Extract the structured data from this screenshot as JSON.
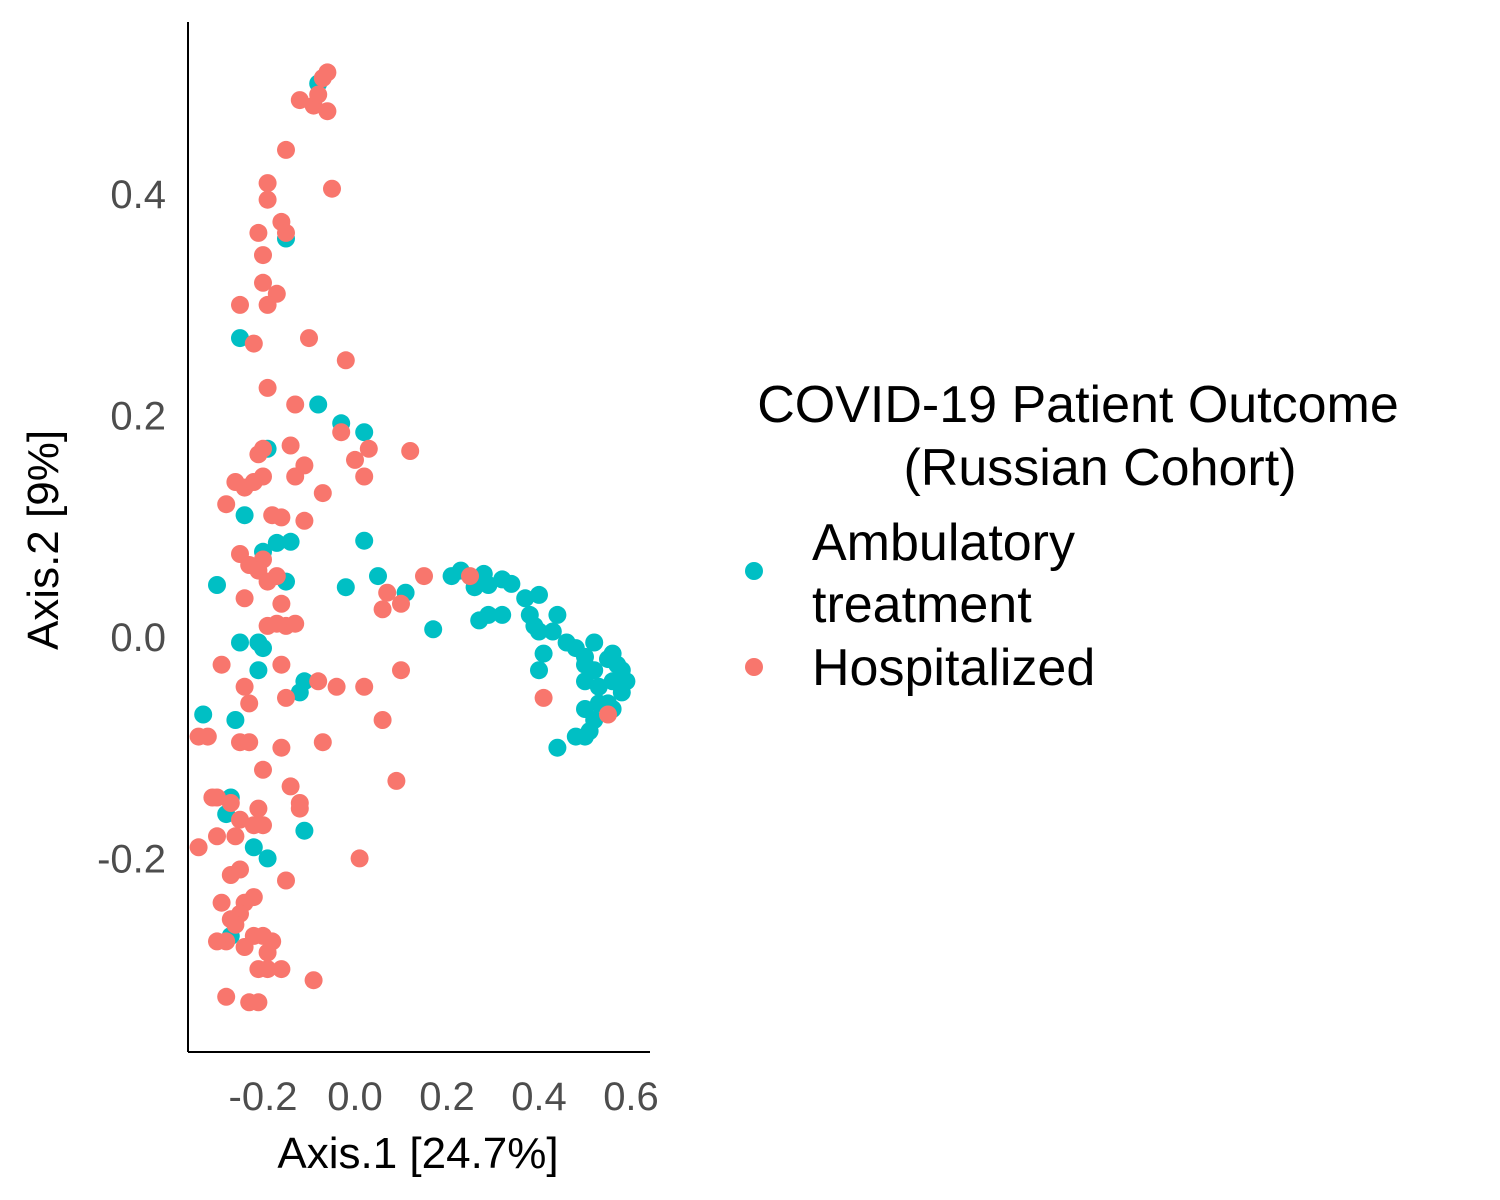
{
  "chart_data": {
    "type": "scatter",
    "title": "",
    "xlabel": "Axis.1   [24.7%]",
    "ylabel": "Axis.2   [9%]",
    "xlim": [
      -0.36,
      0.65
    ],
    "ylim": [
      -0.37,
      0.55
    ],
    "x_ticks": [
      "-0.2",
      "0.0",
      "0.2",
      "0.4",
      "0.6"
    ],
    "y_ticks": [
      "-0.2",
      "0.0",
      "0.2",
      "0.4"
    ],
    "grid": false,
    "legend": {
      "title_lines": [
        "COVID-19 Patient Outcome",
        "(Russian Cohort)"
      ],
      "placement": "right",
      "entries": [
        {
          "label_lines": [
            "Ambulatory",
            "treatment"
          ],
          "color": "#00BFC4"
        },
        {
          "label_lines": [
            "Hospitalized"
          ],
          "color": "#F8766D"
        }
      ]
    },
    "series": [
      {
        "name": "Ambulatory treatment",
        "color": "#00BFC4",
        "points": [
          [
            -0.08,
            0.5
          ],
          [
            -0.15,
            0.36
          ],
          [
            -0.25,
            0.27
          ],
          [
            -0.08,
            0.21
          ],
          [
            -0.03,
            0.193
          ],
          [
            0.02,
            0.185
          ],
          [
            -0.19,
            0.17
          ],
          [
            0.02,
            0.087
          ],
          [
            -0.24,
            0.11
          ],
          [
            -0.17,
            0.085
          ],
          [
            -0.14,
            0.086
          ],
          [
            -0.2,
            0.077
          ],
          [
            -0.3,
            0.047
          ],
          [
            -0.15,
            0.05
          ],
          [
            -0.02,
            0.045
          ],
          [
            0.05,
            0.055
          ],
          [
            0.11,
            0.04
          ],
          [
            0.17,
            0.007
          ],
          [
            0.21,
            0.055
          ],
          [
            0.23,
            0.06
          ],
          [
            0.26,
            0.045
          ],
          [
            0.28,
            0.057
          ],
          [
            0.29,
            0.047
          ],
          [
            0.32,
            0.052
          ],
          [
            0.34,
            0.048
          ],
          [
            0.37,
            0.035
          ],
          [
            0.4,
            0.038
          ],
          [
            0.27,
            0.015
          ],
          [
            0.29,
            0.02
          ],
          [
            0.32,
            0.02
          ],
          [
            0.38,
            0.02
          ],
          [
            0.44,
            0.02
          ],
          [
            0.39,
            0.01
          ],
          [
            0.4,
            0.005
          ],
          [
            0.43,
            0.005
          ],
          [
            0.46,
            -0.005
          ],
          [
            0.48,
            -0.01
          ],
          [
            0.5,
            -0.018
          ],
          [
            0.52,
            -0.005
          ],
          [
            0.55,
            -0.02
          ],
          [
            0.56,
            -0.015
          ],
          [
            0.5,
            -0.025
          ],
          [
            0.52,
            -0.03
          ],
          [
            0.57,
            -0.025
          ],
          [
            0.58,
            -0.03
          ],
          [
            0.56,
            -0.04
          ],
          [
            0.59,
            -0.04
          ],
          [
            0.58,
            -0.05
          ],
          [
            0.53,
            -0.045
          ],
          [
            0.55,
            -0.06
          ],
          [
            0.56,
            -0.065
          ],
          [
            0.53,
            -0.06
          ],
          [
            0.5,
            -0.065
          ],
          [
            0.52,
            -0.075
          ],
          [
            0.51,
            -0.085
          ],
          [
            0.5,
            -0.09
          ],
          [
            0.48,
            -0.09
          ],
          [
            0.44,
            -0.1
          ],
          [
            0.41,
            -0.015
          ],
          [
            0.4,
            -0.03
          ],
          [
            0.5,
            -0.04
          ],
          [
            -0.25,
            -0.005
          ],
          [
            -0.21,
            -0.005
          ],
          [
            -0.2,
            -0.01
          ],
          [
            -0.21,
            -0.03
          ],
          [
            -0.11,
            -0.04
          ],
          [
            -0.12,
            -0.05
          ],
          [
            -0.33,
            -0.07
          ],
          [
            -0.26,
            -0.075
          ],
          [
            -0.27,
            -0.145
          ],
          [
            -0.28,
            -0.16
          ],
          [
            -0.22,
            -0.19
          ],
          [
            -0.19,
            -0.2
          ],
          [
            -0.11,
            -0.175
          ],
          [
            -0.27,
            -0.27
          ]
        ]
      },
      {
        "name": "Hospitalized",
        "color": "#F8766D",
        "points": [
          [
            -0.06,
            0.51
          ],
          [
            -0.07,
            0.505
          ],
          [
            -0.09,
            0.48
          ],
          [
            -0.08,
            0.49
          ],
          [
            -0.12,
            0.485
          ],
          [
            -0.06,
            0.475
          ],
          [
            -0.15,
            0.44
          ],
          [
            -0.05,
            0.405
          ],
          [
            -0.19,
            0.41
          ],
          [
            -0.19,
            0.395
          ],
          [
            -0.16,
            0.375
          ],
          [
            -0.15,
            0.365
          ],
          [
            -0.21,
            0.365
          ],
          [
            -0.2,
            0.345
          ],
          [
            -0.2,
            0.32
          ],
          [
            -0.17,
            0.31
          ],
          [
            -0.19,
            0.3
          ],
          [
            -0.25,
            0.3
          ],
          [
            -0.1,
            0.27
          ],
          [
            -0.22,
            0.265
          ],
          [
            -0.02,
            0.25
          ],
          [
            -0.19,
            0.225
          ],
          [
            -0.13,
            0.21
          ],
          [
            -0.03,
            0.185
          ],
          [
            -0.2,
            0.17
          ],
          [
            -0.14,
            0.173
          ],
          [
            -0.21,
            0.165
          ],
          [
            -0.11,
            0.155
          ],
          [
            0.0,
            0.16
          ],
          [
            0.03,
            0.17
          ],
          [
            0.12,
            0.168
          ],
          [
            -0.2,
            0.145
          ],
          [
            -0.26,
            0.14
          ],
          [
            -0.24,
            0.135
          ],
          [
            -0.22,
            0.14
          ],
          [
            -0.13,
            0.145
          ],
          [
            0.02,
            0.145
          ],
          [
            -0.07,
            0.13
          ],
          [
            -0.28,
            0.12
          ],
          [
            -0.18,
            0.11
          ],
          [
            -0.16,
            0.108
          ],
          [
            -0.11,
            0.105
          ],
          [
            -0.25,
            0.075
          ],
          [
            -0.2,
            0.07
          ],
          [
            -0.23,
            0.065
          ],
          [
            -0.21,
            0.06
          ],
          [
            -0.17,
            0.055
          ],
          [
            -0.19,
            0.05
          ],
          [
            -0.24,
            0.035
          ],
          [
            -0.16,
            0.03
          ],
          [
            0.07,
            0.04
          ],
          [
            0.06,
            0.025
          ],
          [
            0.1,
            0.03
          ],
          [
            0.15,
            0.055
          ],
          [
            0.25,
            0.055
          ],
          [
            -0.19,
            0.01
          ],
          [
            -0.17,
            0.012
          ],
          [
            -0.15,
            0.01
          ],
          [
            -0.13,
            0.012
          ],
          [
            -0.29,
            -0.025
          ],
          [
            -0.16,
            -0.025
          ],
          [
            -0.08,
            -0.04
          ],
          [
            -0.04,
            -0.045
          ],
          [
            0.02,
            -0.045
          ],
          [
            0.1,
            -0.03
          ],
          [
            -0.24,
            -0.045
          ],
          [
            -0.15,
            -0.055
          ],
          [
            -0.23,
            -0.06
          ],
          [
            0.06,
            -0.075
          ],
          [
            0.41,
            -0.055
          ],
          [
            0.55,
            -0.07
          ],
          [
            -0.34,
            -0.09
          ],
          [
            -0.32,
            -0.09
          ],
          [
            -0.25,
            -0.095
          ],
          [
            -0.23,
            -0.095
          ],
          [
            -0.16,
            -0.1
          ],
          [
            -0.07,
            -0.095
          ],
          [
            -0.2,
            -0.12
          ],
          [
            -0.14,
            -0.135
          ],
          [
            -0.12,
            -0.15
          ],
          [
            -0.12,
            -0.155
          ],
          [
            -0.3,
            -0.145
          ],
          [
            -0.31,
            -0.145
          ],
          [
            -0.27,
            -0.15
          ],
          [
            -0.21,
            -0.155
          ],
          [
            -0.25,
            -0.165
          ],
          [
            -0.22,
            -0.17
          ],
          [
            -0.2,
            -0.17
          ],
          [
            -0.26,
            -0.18
          ],
          [
            -0.3,
            -0.18
          ],
          [
            -0.34,
            -0.19
          ],
          [
            0.09,
            -0.13
          ],
          [
            0.01,
            -0.2
          ],
          [
            -0.15,
            -0.22
          ],
          [
            -0.27,
            -0.215
          ],
          [
            -0.25,
            -0.21
          ],
          [
            -0.22,
            -0.235
          ],
          [
            -0.29,
            -0.24
          ],
          [
            -0.24,
            -0.24
          ],
          [
            -0.25,
            -0.25
          ],
          [
            -0.27,
            -0.255
          ],
          [
            -0.26,
            -0.26
          ],
          [
            -0.22,
            -0.27
          ],
          [
            -0.2,
            -0.27
          ],
          [
            -0.18,
            -0.275
          ],
          [
            -0.28,
            -0.275
          ],
          [
            -0.3,
            -0.275
          ],
          [
            -0.24,
            -0.28
          ],
          [
            -0.19,
            -0.285
          ],
          [
            -0.21,
            -0.3
          ],
          [
            -0.19,
            -0.3
          ],
          [
            -0.16,
            -0.3
          ],
          [
            -0.28,
            -0.325
          ],
          [
            -0.23,
            -0.33
          ],
          [
            -0.21,
            -0.33
          ],
          [
            -0.09,
            -0.31
          ]
        ]
      }
    ]
  }
}
